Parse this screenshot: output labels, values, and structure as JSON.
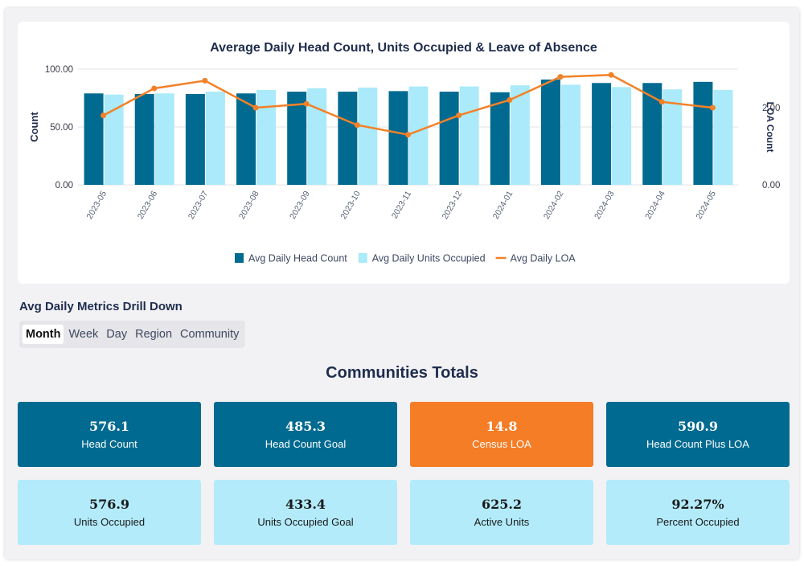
{
  "colors": {
    "head_count": "#006a90",
    "units_occupied": "#aaeafa",
    "loa": "#f28128",
    "orange_card": "#f47d26",
    "dark_card": "#006a90",
    "light_card": "#b3ebfb"
  },
  "chart_data": {
    "type": "bar",
    "title": "Average Daily Head Count, Units Occupied & Leave of Absence",
    "ylabel": "Count",
    "y2label": "LOA Count",
    "ylim": [
      0,
      100
    ],
    "y2lim": [
      0,
      3.0
    ],
    "yticks": [
      "0.00",
      "50.00",
      "100.00"
    ],
    "y2ticks": [
      "0.00",
      "2.00"
    ],
    "categories": [
      "2023-05",
      "2023-06",
      "2023-07",
      "2023-08",
      "2023-09",
      "2023-10",
      "2023-11",
      "2023-12",
      "2024-01",
      "2024-02",
      "2024-03",
      "2024-04",
      "2024-05"
    ],
    "series": [
      {
        "name": "Avg Daily Head Count",
        "kind": "bar",
        "axis": "left",
        "values": [
          79,
          78.5,
          78.5,
          79,
          80.5,
          80.5,
          81,
          80.5,
          80,
          91,
          88,
          88,
          89
        ]
      },
      {
        "name": "Avg Daily Units Occupied",
        "kind": "bar",
        "axis": "left",
        "values": [
          78,
          79,
          80.5,
          82,
          83.5,
          84,
          85,
          85,
          86,
          86.5,
          84.5,
          82.5,
          82
        ]
      },
      {
        "name": "Avg Daily LOA",
        "kind": "line",
        "axis": "right",
        "values": [
          1.8,
          2.5,
          2.7,
          2.0,
          2.1,
          1.55,
          1.3,
          1.8,
          2.2,
          2.8,
          2.85,
          2.15,
          2.0
        ]
      }
    ],
    "legend": [
      "Avg Daily Head Count",
      "Avg Daily Units Occupied",
      "Avg Daily LOA"
    ]
  },
  "drilldown": {
    "title": "Avg Daily Metrics Drill Down",
    "tabs": [
      "Month",
      "Week",
      "Day",
      "Region",
      "Community"
    ]
  },
  "totals": {
    "title": "Communities Totals",
    "cards": [
      {
        "value": "576.1",
        "label": "Head Count",
        "style": "dark"
      },
      {
        "value": "485.3",
        "label": "Head Count Goal",
        "style": "dark"
      },
      {
        "value": "14.8",
        "label": "Census LOA",
        "style": "orange"
      },
      {
        "value": "590.9",
        "label": "Head Count Plus LOA",
        "style": "dark"
      },
      {
        "value": "576.9",
        "label": "Units Occupied",
        "style": "light"
      },
      {
        "value": "433.4",
        "label": "Units Occupied Goal",
        "style": "light"
      },
      {
        "value": "625.2",
        "label": "Active Units",
        "style": "light"
      },
      {
        "value": "92.27%",
        "label": "Percent Occupied",
        "style": "light"
      }
    ]
  }
}
